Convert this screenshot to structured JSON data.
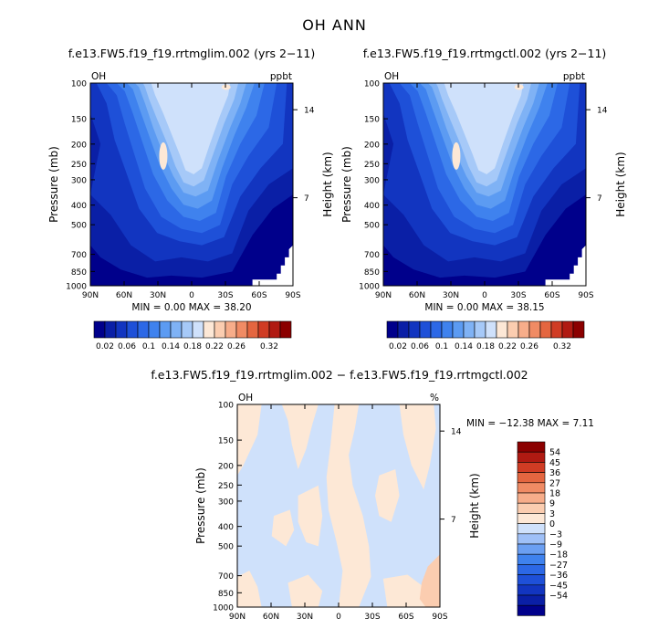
{
  "title": "OH ANN",
  "colors": {
    "abs_scale": [
      "#00008b",
      "#0a1fa6",
      "#1235c0",
      "#1e50d8",
      "#2c68e6",
      "#3f82ee",
      "#5c9bf2",
      "#7fb2f5",
      "#a6c9f8",
      "#cfe1fb",
      "#fde8d6",
      "#fbcdb0",
      "#f7ad8a",
      "#f08b64",
      "#e46640",
      "#d03c24",
      "#b01a12",
      "#8b0000"
    ],
    "diff_scale": [
      "#00008b",
      "#0a1fa6",
      "#1235c0",
      "#1e50d8",
      "#2c68e6",
      "#3f82ee",
      "#6b9ff2",
      "#9fc0f7",
      "#cfe1fb",
      "#fde8d6",
      "#fbcdb0",
      "#f7ad8a",
      "#f08b64",
      "#e46640",
      "#d03c24",
      "#b01a12",
      "#8b0000"
    ]
  },
  "chart_data": [
    {
      "type": "heatmap",
      "title": "f.e13.FW5.f19_f19.rrtmglim.002 (yrs 2−11)",
      "left_label": "OH",
      "right_label": "ppbt",
      "xlabel": "",
      "ylabel": "Pressure (mb)",
      "y2label": "Height (km)",
      "x_ticks": [
        "90N",
        "60N",
        "30N",
        "0",
        "30S",
        "60S",
        "90S"
      ],
      "y_ticks": [
        100,
        150,
        200,
        250,
        300,
        400,
        500,
        700,
        850,
        1000
      ],
      "y2_ticks": [
        14,
        7
      ],
      "stats": "MIN =    0.00   MAX =   38.20",
      "colorbar": {
        "orientation": "horizontal",
        "labels": [
          "0.02",
          "0.06",
          "0.1",
          "0.14",
          "0.18",
          "0.22",
          "0.26",
          "0.32"
        ]
      }
    },
    {
      "type": "heatmap",
      "title": "f.e13.FW5.f19_f19.rrtmgctl.002 (yrs 2−11)",
      "left_label": "OH",
      "right_label": "ppbt",
      "xlabel": "",
      "ylabel": "Pressure (mb)",
      "y2label": "Height (km)",
      "x_ticks": [
        "90N",
        "60N",
        "30N",
        "0",
        "30S",
        "60S",
        "90S"
      ],
      "y_ticks": [
        100,
        150,
        200,
        250,
        300,
        400,
        500,
        700,
        850,
        1000
      ],
      "y2_ticks": [
        14,
        7
      ],
      "stats": "MIN =    0.00   MAX =   38.15",
      "colorbar": {
        "orientation": "horizontal",
        "labels": [
          "0.02",
          "0.06",
          "0.1",
          "0.14",
          "0.18",
          "0.22",
          "0.26",
          "0.32"
        ]
      }
    },
    {
      "type": "heatmap",
      "title": "f.e13.FW5.f19_f19.rrtmglim.002 − f.e13.FW5.f19_f19.rrtmgctl.002",
      "left_label": "OH",
      "right_label": "%",
      "xlabel": "",
      "ylabel": "Pressure (mb)",
      "y2label": "Height (km)",
      "x_ticks": [
        "90N",
        "60N",
        "30N",
        "0",
        "30S",
        "60S",
        "90S"
      ],
      "y_ticks": [
        100,
        150,
        200,
        250,
        300,
        400,
        500,
        700,
        850,
        1000
      ],
      "y2_ticks": [
        14,
        7
      ],
      "stats": "MIN = −12.38   MAX =    7.11",
      "colorbar": {
        "orientation": "vertical",
        "labels": [
          "54",
          "45",
          "36",
          "27",
          "18",
          "9",
          "3",
          "0",
          "−3",
          "−9",
          "−18",
          "−27",
          "−36",
          "−45",
          "−54"
        ]
      }
    }
  ]
}
